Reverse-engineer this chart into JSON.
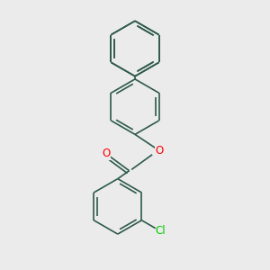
{
  "bg_color": "#ebebeb",
  "bond_color": "#2d5a4a",
  "bond_width": 1.2,
  "dbo": 0.055,
  "O_color": "#ff0000",
  "Cl_color": "#00cc00",
  "font_size_atom": 8.5,
  "figsize": [
    3.0,
    3.0
  ],
  "dpi": 100,
  "xlim": [
    -1.6,
    1.6
  ],
  "ylim": [
    -1.7,
    2.9
  ]
}
